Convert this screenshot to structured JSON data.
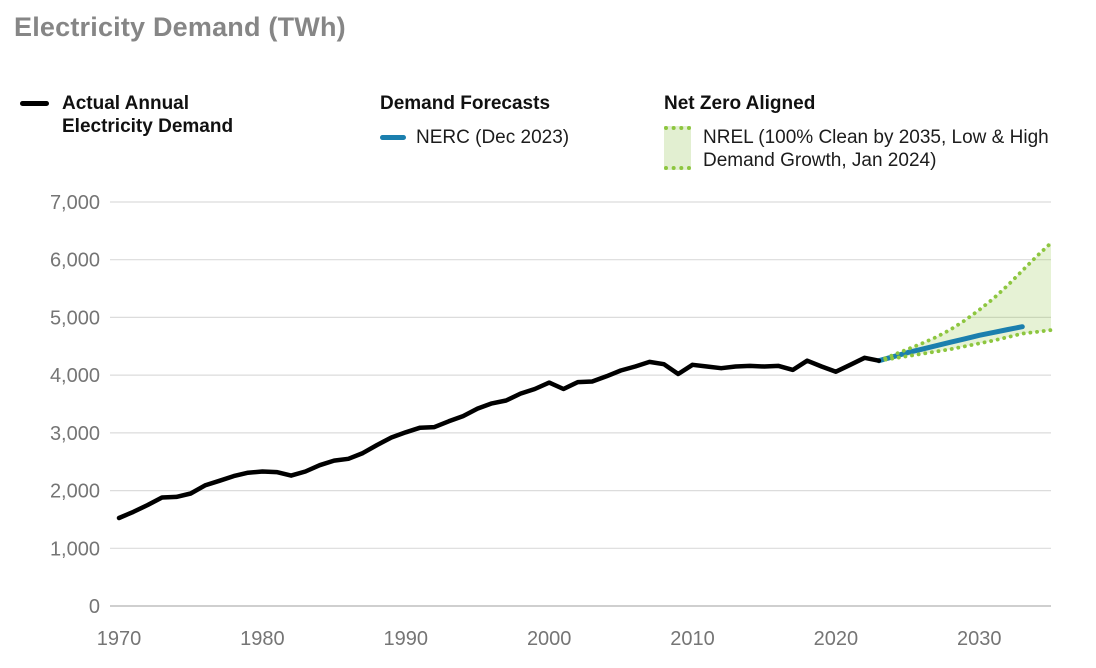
{
  "title": "Electricity Demand (TWh)",
  "legend": {
    "actual": {
      "label_lines": [
        "Actual Annual",
        "Electricity Demand"
      ]
    },
    "forecasts": {
      "header": "Demand Forecasts",
      "nerc_label": "NERC (Dec 2023)"
    },
    "netzero": {
      "header": "Net Zero Aligned",
      "nrel_label_lines": [
        "NREL (100% Clean by 2035, Low & High",
        "Demand Growth, Jan 2024)"
      ]
    }
  },
  "colors": {
    "title_gray": "#868686",
    "axis_label_gray": "#757575",
    "gridline": "#dcdcdc",
    "zero_line": "#bfbfbf",
    "actual_black": "#000000",
    "nerc_blue": "#1b7fae",
    "nrel_green": "#8dc63f",
    "nrel_band_fill": "#8dc63f",
    "nrel_band_opacity": 0.22
  },
  "chart_data": {
    "type": "line",
    "title": "Electricity Demand (TWh)",
    "xlabel": "",
    "ylabel": "TWh",
    "xlim": [
      1970,
      2035
    ],
    "ylim": [
      0,
      7000
    ],
    "grid": "horizontal",
    "legend_position": "top",
    "yticks": [
      0,
      1000,
      2000,
      3000,
      4000,
      5000,
      6000,
      7000
    ],
    "ytick_labels": [
      "0",
      "1,000",
      "2,000",
      "3,000",
      "4,000",
      "5,000",
      "6,000",
      "7,000"
    ],
    "xticks": [
      1970,
      1980,
      1990,
      2000,
      2010,
      2020,
      2030
    ],
    "xtick_labels": [
      "1970",
      "1980",
      "1990",
      "2000",
      "2010",
      "2020",
      "2030"
    ],
    "series": [
      {
        "name": "Actual Annual Electricity Demand",
        "style": "solid",
        "color": "#000000",
        "width": 4.5,
        "x": [
          1970,
          1971,
          1972,
          1973,
          1974,
          1975,
          1976,
          1977,
          1978,
          1979,
          1980,
          1981,
          1982,
          1983,
          1984,
          1985,
          1986,
          1987,
          1988,
          1989,
          1990,
          1991,
          1992,
          1993,
          1994,
          1995,
          1996,
          1997,
          1998,
          1999,
          2000,
          2001,
          2002,
          2003,
          2004,
          2005,
          2006,
          2007,
          2008,
          2009,
          2010,
          2011,
          2012,
          2013,
          2014,
          2015,
          2016,
          2017,
          2018,
          2019,
          2020,
          2021,
          2022,
          2023
        ],
        "values": [
          1525,
          1630,
          1750,
          1880,
          1890,
          1950,
          2090,
          2170,
          2250,
          2310,
          2330,
          2320,
          2260,
          2330,
          2440,
          2520,
          2550,
          2650,
          2790,
          2920,
          3010,
          3090,
          3100,
          3200,
          3290,
          3420,
          3510,
          3560,
          3680,
          3760,
          3870,
          3760,
          3880,
          3890,
          3980,
          4080,
          4150,
          4230,
          4190,
          4020,
          4180,
          4150,
          4120,
          4150,
          4160,
          4150,
          4160,
          4090,
          4250,
          4150,
          4060,
          4180,
          4300,
          4250
        ]
      },
      {
        "name": "NERC (Dec 2023)",
        "style": "solid",
        "color": "#1b7fae",
        "width": 5,
        "x": [
          2023,
          2024,
          2025,
          2026,
          2027,
          2028,
          2029,
          2030,
          2031,
          2032,
          2033
        ],
        "values": [
          4250,
          4320,
          4390,
          4450,
          4510,
          4570,
          4630,
          4690,
          4740,
          4790,
          4840
        ]
      },
      {
        "name": "NREL High Demand Growth (100% Clean by 2035)",
        "style": "dotted",
        "color": "#8dc63f",
        "width": 3.8,
        "x": [
          2023,
          2024,
          2025,
          2026,
          2027,
          2028,
          2029,
          2030,
          2031,
          2032,
          2033,
          2034,
          2035
        ],
        "values": [
          4250,
          4350,
          4450,
          4550,
          4660,
          4790,
          4950,
          5130,
          5330,
          5560,
          5810,
          6060,
          6290
        ]
      },
      {
        "name": "NREL Low Demand Growth (100% Clean by 2035)",
        "style": "dotted",
        "color": "#8dc63f",
        "width": 3.8,
        "x": [
          2023,
          2024,
          2025,
          2026,
          2027,
          2028,
          2029,
          2030,
          2031,
          2032,
          2033,
          2034,
          2035
        ],
        "values": [
          4250,
          4290,
          4330,
          4370,
          4410,
          4450,
          4500,
          4550,
          4600,
          4660,
          4720,
          4750,
          4780
        ]
      }
    ],
    "band": {
      "between_series": [
        2,
        3
      ],
      "label": "NREL (100% Clean by 2035, Low & High Demand Growth, Jan 2024)"
    }
  }
}
